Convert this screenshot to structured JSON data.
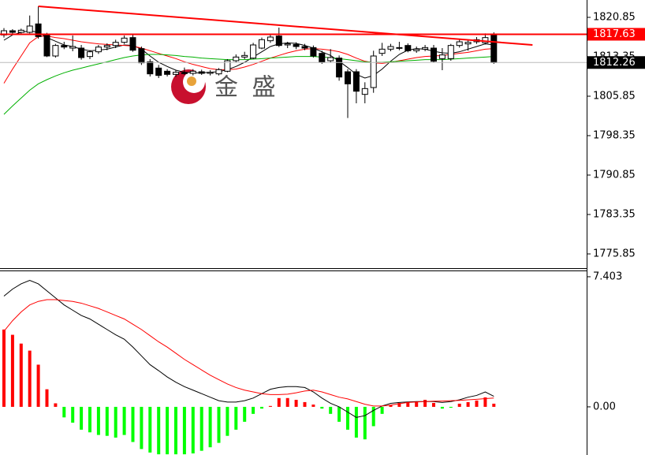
{
  "chart_data": [
    {
      "type": "candlestick",
      "ylim": [
        1773.15,
        1824.15
      ],
      "yticks": [
        1820.85,
        1813.35,
        1805.85,
        1798.35,
        1790.85,
        1783.35,
        1775.85
      ],
      "up_color": "#ffffff",
      "down_color": "#000000",
      "open": [
        1817.5,
        1818.3,
        1818.0,
        1818.0,
        1819.6,
        1817.4,
        1813.5,
        1815.5,
        1815.0,
        1815.0,
        1813.4,
        1814.3,
        1815.2,
        1815.5,
        1816.1,
        1817.0,
        1814.9,
        1812.4,
        1811.2,
        1810.6,
        1810.0,
        1810.3,
        1810.2,
        1810.5,
        1810.2,
        1810.1,
        1810.6,
        1812.6,
        1813.3,
        1813.1,
        1815.0,
        1816.4,
        1817.3,
        1815.6,
        1815.7,
        1815.3,
        1815.1,
        1814.0,
        1812.6,
        1813.1,
        1810.5,
        1810.5,
        1806.2,
        1807.5,
        1814.0,
        1814.8,
        1815.1,
        1815.5,
        1814.5,
        1814.8,
        1815.0,
        1813.0,
        1813.0,
        1815.5,
        1815.8,
        1816.2,
        1816.0,
        1817.5
      ],
      "high": [
        1818.8,
        1818.6,
        1818.7,
        1821.2,
        1822.95,
        1817.9,
        1815.8,
        1816.2,
        1817.4,
        1815.6,
        1814.6,
        1815.6,
        1815.9,
        1816.6,
        1817.4,
        1817.5,
        1815.3,
        1812.9,
        1811.8,
        1811.0,
        1810.8,
        1811.3,
        1811.0,
        1810.9,
        1810.8,
        1811.2,
        1812.9,
        1813.8,
        1814.3,
        1816.0,
        1817.0,
        1817.6,
        1818.9,
        1816.2,
        1816.1,
        1815.8,
        1815.5,
        1814.5,
        1814.8,
        1813.6,
        1811.0,
        1811.0,
        1808.5,
        1814.5,
        1816.0,
        1815.8,
        1816.2,
        1815.9,
        1815.3,
        1815.6,
        1815.6,
        1815.0,
        1815.8,
        1816.6,
        1816.5,
        1817.1,
        1817.8,
        1818.0
      ],
      "low": [
        1817.0,
        1817.6,
        1817.5,
        1817.8,
        1816.8,
        1813.3,
        1813.2,
        1814.8,
        1814.4,
        1812.8,
        1812.9,
        1813.9,
        1814.6,
        1815.0,
        1815.8,
        1814.3,
        1811.8,
        1809.6,
        1809.3,
        1809.6,
        1809.5,
        1809.9,
        1809.8,
        1809.9,
        1809.8,
        1809.8,
        1810.4,
        1812.3,
        1812.9,
        1812.9,
        1814.8,
        1816.0,
        1815.2,
        1815.0,
        1814.8,
        1814.6,
        1813.2,
        1812.0,
        1812.3,
        1808.8,
        1801.7,
        1804.5,
        1804.5,
        1806.5,
        1813.5,
        1814.4,
        1814.6,
        1814.2,
        1814.1,
        1814.4,
        1812.3,
        1810.8,
        1812.6,
        1815.1,
        1814.5,
        1815.8,
        1815.7,
        1812.0
      ],
      "close": [
        1818.3,
        1818.0,
        1818.4,
        1819.2,
        1817.2,
        1813.5,
        1815.5,
        1815.2,
        1815.3,
        1813.2,
        1814.3,
        1815.2,
        1815.5,
        1816.1,
        1816.9,
        1814.6,
        1812.2,
        1810.1,
        1809.8,
        1810.0,
        1810.4,
        1810.2,
        1810.6,
        1810.2,
        1810.4,
        1810.9,
        1812.6,
        1813.3,
        1813.6,
        1815.6,
        1816.6,
        1817.1,
        1815.5,
        1815.8,
        1815.3,
        1815.0,
        1813.5,
        1812.3,
        1813.2,
        1809.5,
        1808.2,
        1806.8,
        1807.3,
        1813.5,
        1814.8,
        1815.3,
        1815.0,
        1814.5,
        1814.8,
        1815.1,
        1812.5,
        1813.7,
        1815.5,
        1816.2,
        1816.1,
        1816.6,
        1817.0,
        1812.26
      ],
      "series": [
        {
          "color": "#000000",
          "values": [
            1816.5,
            1817.5,
            1818.0,
            1818.3,
            1818.0,
            1817.0,
            1816.3,
            1815.6,
            1815.3,
            1814.8,
            1814.5,
            1814.6,
            1814.8,
            1815.2,
            1815.6,
            1815.5,
            1814.8,
            1813.5,
            1812.3,
            1811.5,
            1810.8,
            1810.4,
            1810.3,
            1810.3,
            1810.4,
            1810.5,
            1810.9,
            1811.5,
            1812.3,
            1813.3,
            1814.3,
            1815.3,
            1815.8,
            1816.0,
            1815.9,
            1815.5,
            1815.0,
            1814.3,
            1813.6,
            1812.5,
            1811.3,
            1810.0,
            1809.3,
            1809.8,
            1811.0,
            1812.5,
            1813.8,
            1814.6,
            1814.9,
            1814.8,
            1814.4,
            1814.1,
            1814.0,
            1814.3,
            1814.8,
            1815.3,
            1815.8,
            1815.6
          ]
        },
        {
          "color": "#ff0000",
          "values": [
            1808.3,
            1811.0,
            1813.5,
            1816.0,
            1817.2,
            1817.3,
            1817.0,
            1816.8,
            1816.5,
            1816.2,
            1816.0,
            1815.8,
            1815.7,
            1815.6,
            1815.5,
            1815.4,
            1815.0,
            1814.5,
            1814.0,
            1813.5,
            1813.0,
            1812.4,
            1811.9,
            1811.5,
            1811.1,
            1810.9,
            1810.9,
            1811.0,
            1811.4,
            1811.9,
            1812.5,
            1813.1,
            1813.6,
            1814.1,
            1814.5,
            1814.8,
            1814.9,
            1814.8,
            1814.6,
            1814.3,
            1813.8,
            1813.1,
            1812.5,
            1812.2,
            1812.1,
            1812.3,
            1812.6,
            1812.9,
            1813.2,
            1813.4,
            1813.5,
            1813.6,
            1813.8,
            1814.0,
            1814.2,
            1814.5,
            1814.8,
            1814.9
          ]
        },
        {
          "color": "#00b000",
          "values": [
            1802.4,
            1804.0,
            1805.5,
            1807.0,
            1808.2,
            1809.0,
            1809.7,
            1810.3,
            1810.8,
            1811.2,
            1811.6,
            1812.0,
            1812.4,
            1812.8,
            1813.2,
            1813.5,
            1813.7,
            1813.8,
            1813.8,
            1813.7,
            1813.6,
            1813.4,
            1813.3,
            1813.1,
            1813.0,
            1812.9,
            1812.8,
            1812.8,
            1812.8,
            1812.9,
            1813.0,
            1813.1,
            1813.2,
            1813.3,
            1813.4,
            1813.4,
            1813.4,
            1813.3,
            1813.2,
            1813.0,
            1812.8,
            1812.6,
            1812.4,
            1812.3,
            1812.3,
            1812.4,
            1812.5,
            1812.6,
            1812.7,
            1812.8,
            1812.8,
            1812.8,
            1812.9,
            1813.0,
            1813.1,
            1813.2,
            1813.3,
            1813.4
          ]
        }
      ],
      "trendline": {
        "color": "#ff0000",
        "x": [
          4,
          61.5
        ],
        "y": [
          1822.95,
          1815.6
        ]
      },
      "hline": {
        "color": "#ff0000",
        "value": 1817.63
      },
      "last_price": 1812.26
    },
    {
      "type": "macd",
      "ylim": [
        -2.74,
        7.76
      ],
      "yticks": [
        7.403,
        {
          "value": 0,
          "label": "0.00"
        }
      ],
      "up_color": "#ff0000",
      "down_color": "#00ff00",
      "histogram": [
        4.4,
        4.1,
        3.6,
        3.2,
        2.4,
        1.0,
        0.2,
        -0.6,
        -0.9,
        -1.3,
        -1.45,
        -1.6,
        -1.65,
        -1.75,
        -1.6,
        -2,
        -2.4,
        -2.6,
        -2.7,
        -2.7,
        -2.7,
        -2.7,
        -2.65,
        -2.5,
        -2.3,
        -2.05,
        -1.65,
        -1.3,
        -0.85,
        -0.4,
        -0.1,
        0.05,
        0.5,
        0.5,
        0.4,
        0.27,
        0.13,
        -0.1,
        -0.4,
        -0.85,
        -1.3,
        -1.75,
        -1.85,
        -1.1,
        -0.4,
        0.1,
        0.22,
        0.27,
        0.3,
        0.4,
        0.22,
        -0.1,
        -0.05,
        0.18,
        0.27,
        0.36,
        0.54,
        0.18
      ],
      "series": [
        {
          "color": "#000000",
          "values": [
            6.3,
            6.7,
            7.0,
            7.2,
            7.0,
            6.6,
            6.2,
            5.8,
            5.5,
            5.2,
            5.0,
            4.7,
            4.4,
            4.1,
            3.85,
            3.4,
            2.9,
            2.4,
            2.06,
            1.7,
            1.4,
            1.15,
            0.95,
            0.75,
            0.55,
            0.35,
            0.27,
            0.27,
            0.35,
            0.5,
            0.75,
            1.0,
            1.1,
            1.15,
            1.15,
            1.1,
            0.85,
            0.5,
            0.2,
            0.0,
            -0.3,
            -0.6,
            -0.5,
            -0.2,
            0.05,
            0.2,
            0.25,
            0.28,
            0.3,
            0.3,
            0.3,
            0.25,
            0.3,
            0.4,
            0.55,
            0.65,
            0.85,
            0.6
          ]
        },
        {
          "color": "#ff0000",
          "values": [
            4.3,
            4.9,
            5.4,
            5.8,
            6.0,
            6.1,
            6.1,
            6.05,
            6.0,
            5.9,
            5.75,
            5.6,
            5.4,
            5.2,
            5.0,
            4.7,
            4.4,
            4.05,
            3.7,
            3.4,
            3.05,
            2.7,
            2.4,
            2.1,
            1.8,
            1.55,
            1.3,
            1.1,
            0.95,
            0.85,
            0.75,
            0.7,
            0.7,
            0.72,
            0.8,
            0.9,
            0.95,
            0.85,
            0.7,
            0.55,
            0.45,
            0.3,
            0.15,
            0.05,
            0.05,
            0.1,
            0.18,
            0.25,
            0.28,
            0.3,
            0.32,
            0.33,
            0.35,
            0.37,
            0.4,
            0.43,
            0.47,
            0.5
          ]
        }
      ]
    }
  ],
  "brand": "金 盛"
}
